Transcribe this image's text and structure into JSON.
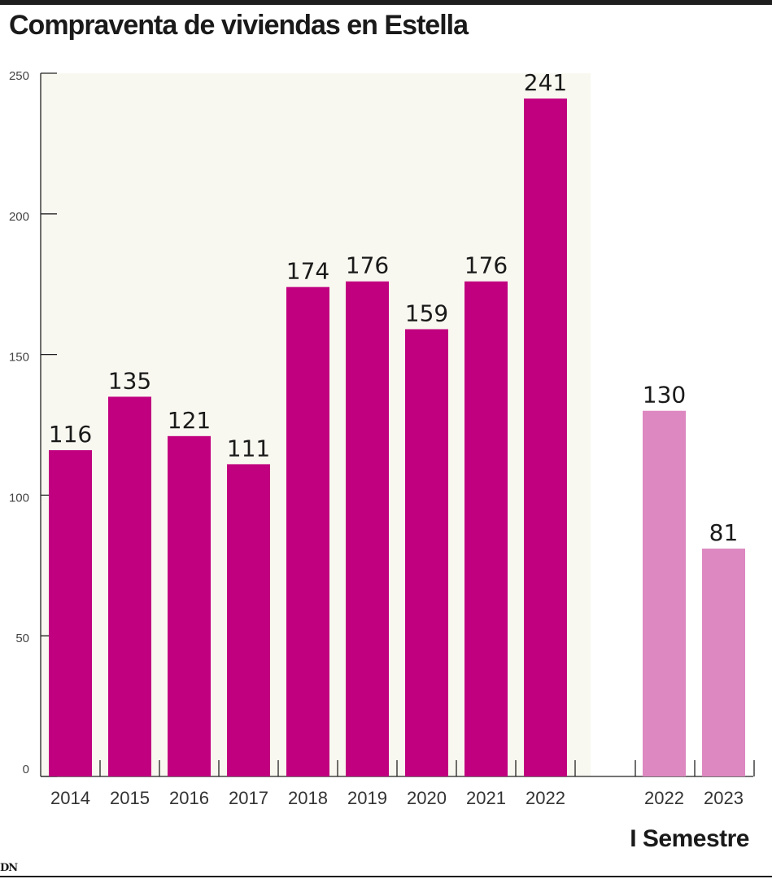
{
  "title": "Compraventa de viviendas en Estella",
  "logo": "DN",
  "chart_data": {
    "type": "bar",
    "title": "Compraventa de viviendas en Estella",
    "xlabel": "",
    "ylabel": "",
    "ylim": [
      0,
      250
    ],
    "yticks": [
      "0",
      "50",
      "100",
      "150",
      "200",
      "250"
    ],
    "grid": false,
    "groups": [
      {
        "label": "",
        "highlighted_background": true,
        "color": "#c0007f",
        "categories": [
          "2014",
          "2015",
          "2016",
          "2017",
          "2018",
          "2019",
          "2020",
          "2021",
          "2022"
        ],
        "values": [
          116,
          135,
          121,
          111,
          174,
          176,
          159,
          176,
          241
        ]
      },
      {
        "label": "I Semestre",
        "highlighted_background": false,
        "color": "#dd88c0",
        "categories": [
          "2022",
          "2023"
        ],
        "values": [
          130,
          81
        ]
      }
    ],
    "background_color": "#f9f8f0",
    "axis_color": "#222222"
  }
}
